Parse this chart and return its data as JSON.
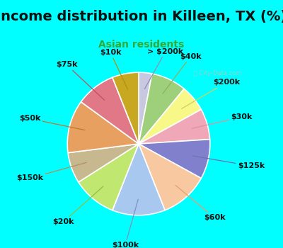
{
  "title": "Income distribution in Killeen, TX (%)",
  "subtitle": "Asian residents",
  "subtitle_color": "#33aa33",
  "bg_color": "#00ffff",
  "chart_box_color": "#e8f5f0",
  "watermark": "ⓘ City-Data.com",
  "watermark_color": "#b0c8c0",
  "labels": [
    "> $200k",
    "$40k",
    "$200k",
    "$30k",
    "$125k",
    "$60k",
    "$100k",
    "$20k",
    "$150k",
    "$50k",
    "$75k",
    "$10k"
  ],
  "values": [
    3,
    8,
    6,
    7,
    9,
    11,
    12,
    10,
    7,
    12,
    9,
    6
  ],
  "colors": [
    "#c8c8e0",
    "#9ecf7a",
    "#f8f888",
    "#f0a8b8",
    "#8080cc",
    "#f8c8a0",
    "#a8c8f0",
    "#c0e870",
    "#c8b890",
    "#e8a060",
    "#e07888",
    "#c8a820"
  ],
  "line_colors": [
    "#9090b0",
    "#90b060",
    "#d0d060",
    "#e090a0",
    "#7070b0",
    "#e0a070",
    "#8090c0",
    "#90c040",
    "#b09060",
    "#c07830",
    "#c05060",
    "#b09010"
  ],
  "label_fontsize": 8,
  "title_fontsize": 14,
  "subtitle_fontsize": 10
}
